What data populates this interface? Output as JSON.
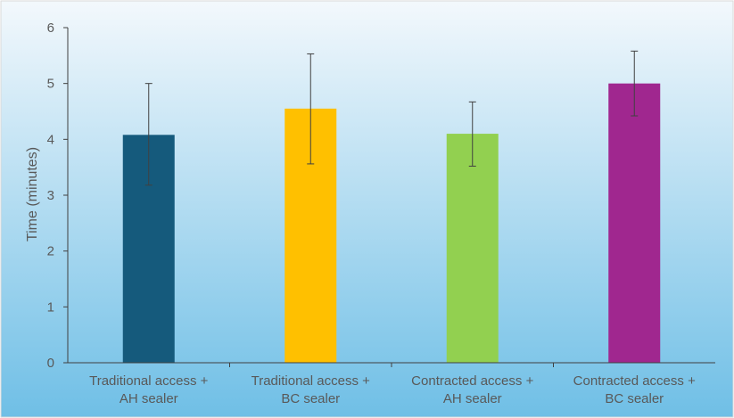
{
  "chart_data": {
    "type": "bar",
    "title": "",
    "xlabel": "",
    "ylabel": "Time (minutes)",
    "ylim": [
      0,
      6
    ],
    "yticks": [
      0,
      1,
      2,
      3,
      4,
      5,
      6
    ],
    "grid": false,
    "legend": "none",
    "categories": [
      [
        "Traditional access +",
        "AH sealer"
      ],
      [
        "Traditional access +",
        "BC sealer"
      ],
      [
        "Contracted access +",
        "AH sealer"
      ],
      [
        "Contracted access +",
        "BC sealer"
      ]
    ],
    "values": [
      4.08,
      4.55,
      4.1,
      5.0
    ],
    "error": [
      {
        "low": 3.18,
        "high": 5.0
      },
      {
        "low": 3.56,
        "high": 5.53
      },
      {
        "low": 3.52,
        "high": 4.67
      },
      {
        "low": 4.42,
        "high": 5.58
      }
    ],
    "colors": [
      "#155A7C",
      "#FFC000",
      "#92D050",
      "#A0278F"
    ],
    "background_gradient": [
      "#F3F8FC",
      "#6FBFE6"
    ],
    "axis_color": "#404040",
    "error_bar_color": "#404040"
  }
}
